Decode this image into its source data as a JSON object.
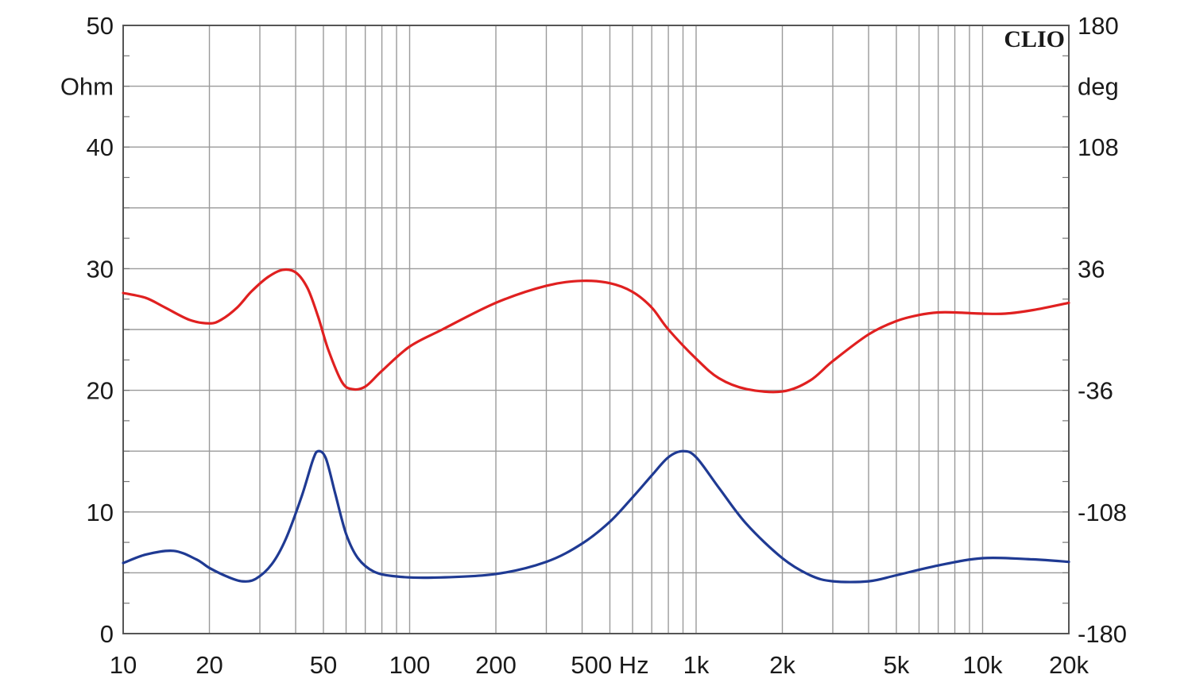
{
  "chart_data": {
    "type": "line",
    "brand": "CLIO",
    "x_scale": "log",
    "xlim": [
      10,
      20000
    ],
    "x_ticks": [
      {
        "value": 10,
        "label": "10"
      },
      {
        "value": 20,
        "label": "20"
      },
      {
        "value": 50,
        "label": "50"
      },
      {
        "value": 100,
        "label": "100"
      },
      {
        "value": 200,
        "label": "200"
      },
      {
        "value": 500,
        "label": "500 Hz"
      },
      {
        "value": 1000,
        "label": "1k"
      },
      {
        "value": 2000,
        "label": "2k"
      },
      {
        "value": 5000,
        "label": "5k"
      },
      {
        "value": 10000,
        "label": "10k"
      },
      {
        "value": 20000,
        "label": "20k"
      }
    ],
    "y_left": {
      "unit": "Ohm",
      "ylim": [
        0,
        50
      ],
      "ticks": [
        {
          "value": 0,
          "label": "0"
        },
        {
          "value": 10,
          "label": "10"
        },
        {
          "value": 20,
          "label": "20"
        },
        {
          "value": 30,
          "label": "30"
        },
        {
          "value": 40,
          "label": "40"
        },
        {
          "value": 50,
          "label": "50"
        }
      ]
    },
    "y_right": {
      "unit": "deg",
      "ylim": [
        -180,
        180
      ],
      "ticks": [
        {
          "value": -180,
          "label": "-180"
        },
        {
          "value": -108,
          "label": "-108"
        },
        {
          "value": -36,
          "label": "-36"
        },
        {
          "value": 36,
          "label": "36"
        },
        {
          "value": 108,
          "label": "108"
        },
        {
          "value": 180,
          "label": "180"
        }
      ]
    },
    "grid": true,
    "series": [
      {
        "color": "#e02020",
        "axis": "right",
        "points": [
          [
            10,
            21.6
          ],
          [
            12,
            18.7
          ],
          [
            14,
            13.0
          ],
          [
            17,
            5.8
          ],
          [
            20,
            3.6
          ],
          [
            22,
            5.8
          ],
          [
            25,
            13.0
          ],
          [
            28,
            22.4
          ],
          [
            32,
            31.0
          ],
          [
            36,
            35.3
          ],
          [
            40,
            33.8
          ],
          [
            44,
            24.5
          ],
          [
            48,
            7.2
          ],
          [
            52,
            -12.0
          ],
          [
            58,
            -31.0
          ],
          [
            63,
            -35.3
          ],
          [
            70,
            -33.8
          ],
          [
            80,
            -24.5
          ],
          [
            100,
            -10.1
          ],
          [
            130,
            0.0
          ],
          [
            200,
            15.8
          ],
          [
            300,
            25.9
          ],
          [
            400,
            28.8
          ],
          [
            500,
            27.4
          ],
          [
            600,
            22.3
          ],
          [
            700,
            13.0
          ],
          [
            800,
            0.0
          ],
          [
            1000,
            -17.3
          ],
          [
            1200,
            -28.8
          ],
          [
            1500,
            -35.3
          ],
          [
            2000,
            -36.7
          ],
          [
            2500,
            -30.2
          ],
          [
            3000,
            -18.7
          ],
          [
            4000,
            -2.9
          ],
          [
            5000,
            5.0
          ],
          [
            6000,
            8.6
          ],
          [
            7000,
            10.1
          ],
          [
            8000,
            10.1
          ],
          [
            10000,
            9.4
          ],
          [
            12000,
            9.4
          ],
          [
            15000,
            11.5
          ],
          [
            20000,
            15.8
          ]
        ]
      },
      {
        "color": "#1f3a93",
        "axis": "left",
        "points": [
          [
            10,
            5.8
          ],
          [
            12,
            6.5
          ],
          [
            15,
            6.8
          ],
          [
            18,
            6.1
          ],
          [
            20,
            5.4
          ],
          [
            23,
            4.7
          ],
          [
            26,
            4.3
          ],
          [
            29,
            4.5
          ],
          [
            33,
            5.7
          ],
          [
            37,
            7.8
          ],
          [
            42,
            11.3
          ],
          [
            46,
            14.3
          ],
          [
            48,
            15.0
          ],
          [
            51,
            14.4
          ],
          [
            55,
            11.5
          ],
          [
            60,
            8.2
          ],
          [
            66,
            6.2
          ],
          [
            75,
            5.1
          ],
          [
            90,
            4.7
          ],
          [
            120,
            4.6
          ],
          [
            200,
            4.9
          ],
          [
            300,
            5.9
          ],
          [
            400,
            7.4
          ],
          [
            500,
            9.2
          ],
          [
            600,
            11.2
          ],
          [
            700,
            13.0
          ],
          [
            800,
            14.5
          ],
          [
            900,
            15.0
          ],
          [
            1000,
            14.5
          ],
          [
            1200,
            12.0
          ],
          [
            1500,
            9.0
          ],
          [
            2000,
            6.2
          ],
          [
            2500,
            4.8
          ],
          [
            3000,
            4.3
          ],
          [
            4000,
            4.3
          ],
          [
            5000,
            4.8
          ],
          [
            7000,
            5.6
          ],
          [
            10000,
            6.2
          ],
          [
            15000,
            6.1
          ],
          [
            20000,
            5.9
          ]
        ]
      }
    ]
  }
}
